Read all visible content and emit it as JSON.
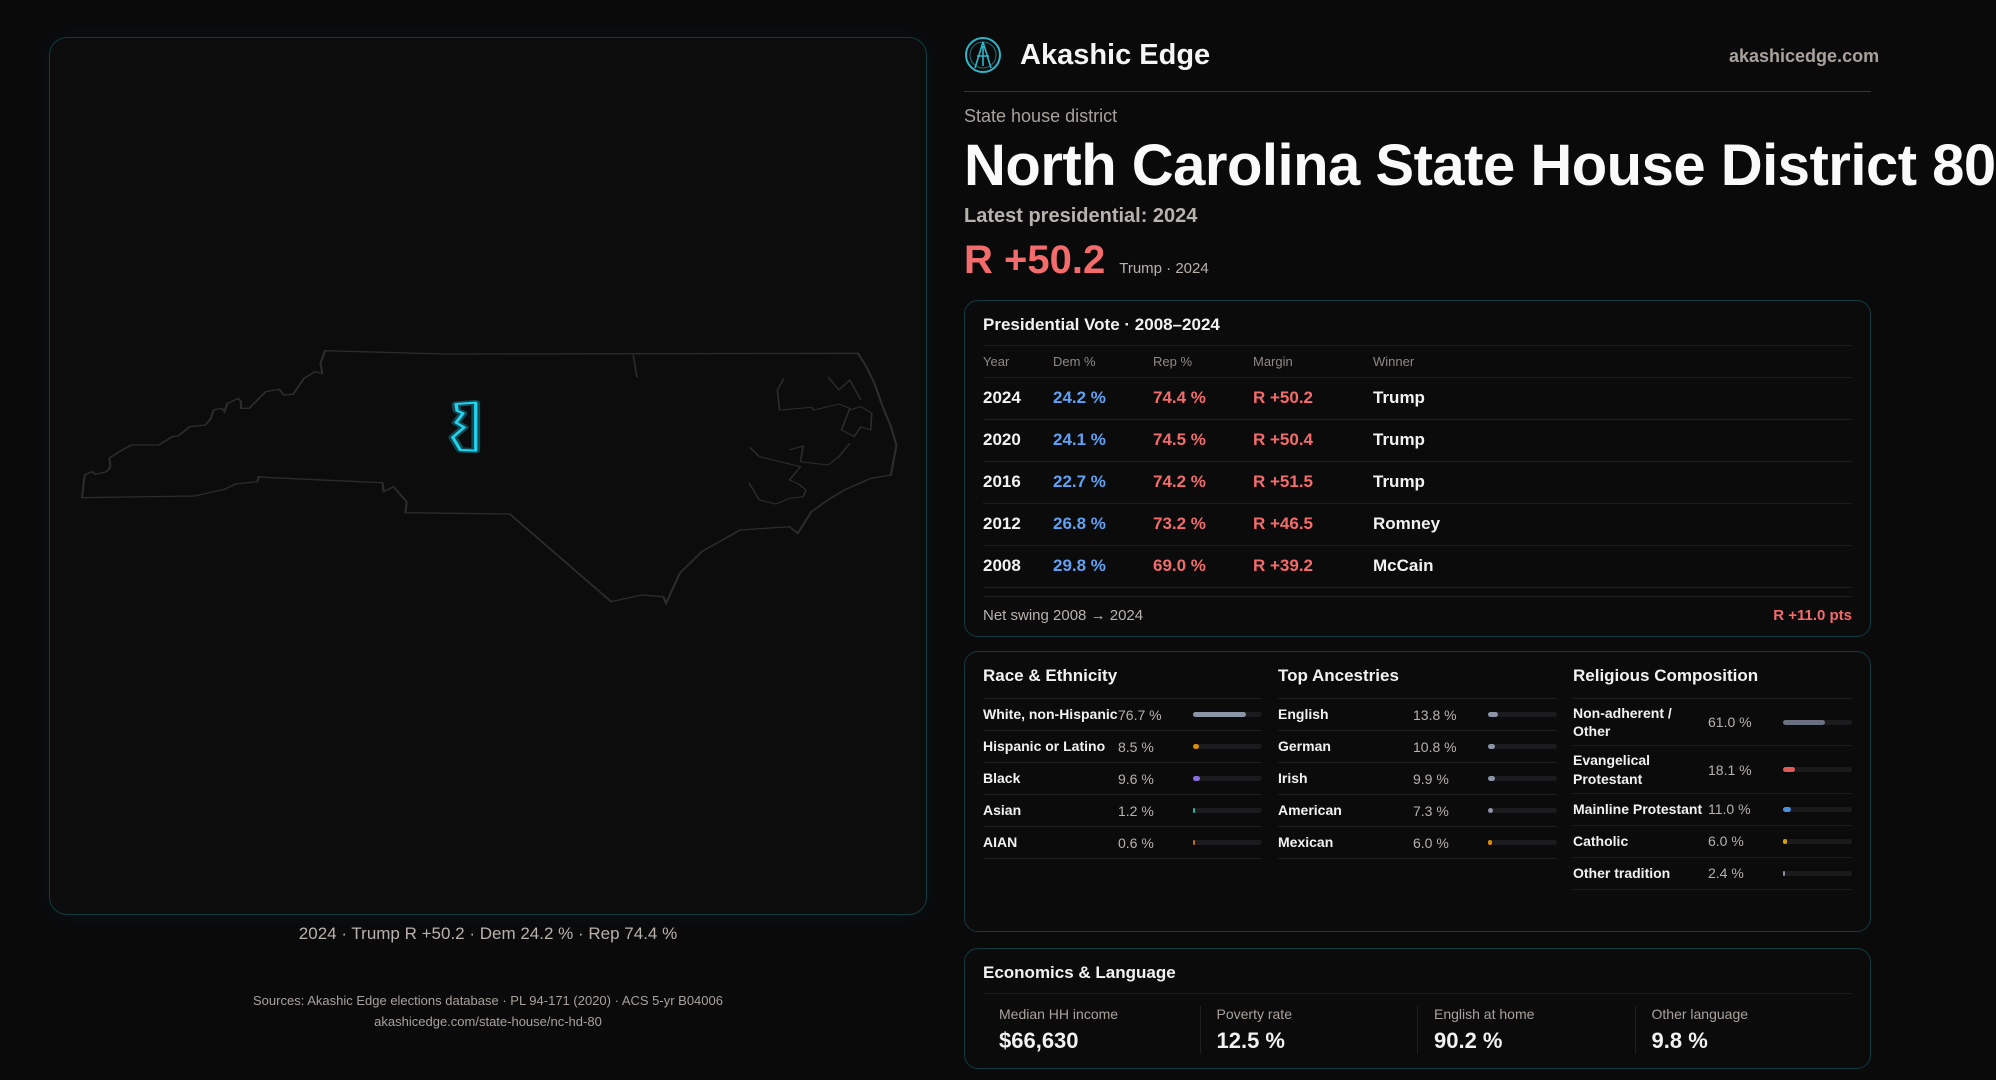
{
  "map": {
    "caption": "2024 · Trump R +50.2 · Dem 24.2 % · Rep 74.4 %",
    "highlight_color": "#22d3ee"
  },
  "header": {
    "brand": "Akashic Edge",
    "site": "akashicedge.com"
  },
  "district": {
    "kicker": "State house district",
    "title": "North Carolina State House District 80",
    "latest": "Latest presidential: 2024",
    "margin": "R +50.2",
    "margin_sub": "Trump · 2024"
  },
  "vote": {
    "title": "Presidential Vote · 2008–2024",
    "columns": [
      "Year",
      "Dem %",
      "Rep %",
      "Margin",
      "Winner"
    ],
    "rows": [
      [
        "2024",
        "24.2 %",
        "74.4 %",
        "R +50.2",
        "Trump"
      ],
      [
        "2020",
        "24.1 %",
        "74.5 %",
        "R +50.4",
        "Trump"
      ],
      [
        "2016",
        "22.7 %",
        "74.2 %",
        "R +51.5",
        "Trump"
      ],
      [
        "2012",
        "26.8 %",
        "73.2 %",
        "R +46.5",
        "Romney"
      ],
      [
        "2008",
        "29.8 %",
        "69.0 %",
        "R +39.2",
        "McCain"
      ]
    ],
    "swing_label": "Net swing 2008 → 2024",
    "swing_value": "R +11.0 pts"
  },
  "demographics": [
    {
      "title": "Race & Ethnicity",
      "items": [
        {
          "label": "White, non-Hispanic",
          "pct": "76.7 %",
          "value": 76.7,
          "color": "#8a94a6"
        },
        {
          "label": "Hispanic or Latino",
          "pct": "8.5 %",
          "value": 8.5,
          "color": "#d98b0b"
        },
        {
          "label": "Black",
          "pct": "9.6 %",
          "value": 9.6,
          "color": "#8b6fe0"
        },
        {
          "label": "Asian",
          "pct": "1.2 %",
          "value": 1.2,
          "color": "#2bb3a0"
        },
        {
          "label": "AIAN",
          "pct": "0.6 %",
          "value": 0.6,
          "color": "#c2701a"
        }
      ]
    },
    {
      "title": "Top Ancestries",
      "items": [
        {
          "label": "English",
          "pct": "13.8 %",
          "value": 13.8,
          "color": "#8a94a6"
        },
        {
          "label": "German",
          "pct": "10.8 %",
          "value": 10.8,
          "color": "#8a94a6"
        },
        {
          "label": "Irish",
          "pct": "9.9 %",
          "value": 9.9,
          "color": "#8a94a6"
        },
        {
          "label": "American",
          "pct": "7.3 %",
          "value": 7.3,
          "color": "#8a94a6"
        },
        {
          "label": "Mexican",
          "pct": "6.0 %",
          "value": 6.0,
          "color": "#d98b0b"
        }
      ]
    },
    {
      "title": "Religious Composition",
      "items": [
        {
          "label": "Non-adherent / Other",
          "pct": "61.0 %",
          "value": 61.0,
          "color": "#6b7080"
        },
        {
          "label": "Evangelical Protestant",
          "pct": "18.1 %",
          "value": 18.1,
          "color": "#e05a5a"
        },
        {
          "label": "Mainline Protestant",
          "pct": "11.0 %",
          "value": 11.0,
          "color": "#4a8ee0"
        },
        {
          "label": "Catholic",
          "pct": "6.0 %",
          "value": 6.0,
          "color": "#d9a00b"
        },
        {
          "label": "Other tradition",
          "pct": "2.4 %",
          "value": 2.4,
          "color": "#8a94a6"
        }
      ]
    }
  ],
  "economics": {
    "title": "Economics & Language",
    "stats": [
      {
        "label": "Median HH income",
        "value": "$66,630"
      },
      {
        "label": "Poverty rate",
        "value": "12.5 %"
      },
      {
        "label": "English at home",
        "value": "90.2 %"
      },
      {
        "label": "Other language",
        "value": "9.8 %"
      }
    ]
  },
  "footer": {
    "sources": "Sources: Akashic Edge elections database · PL 94-171 (2020) · ACS 5-yr B04006",
    "url": "akashicedge.com/state-house/nc-hd-80"
  }
}
